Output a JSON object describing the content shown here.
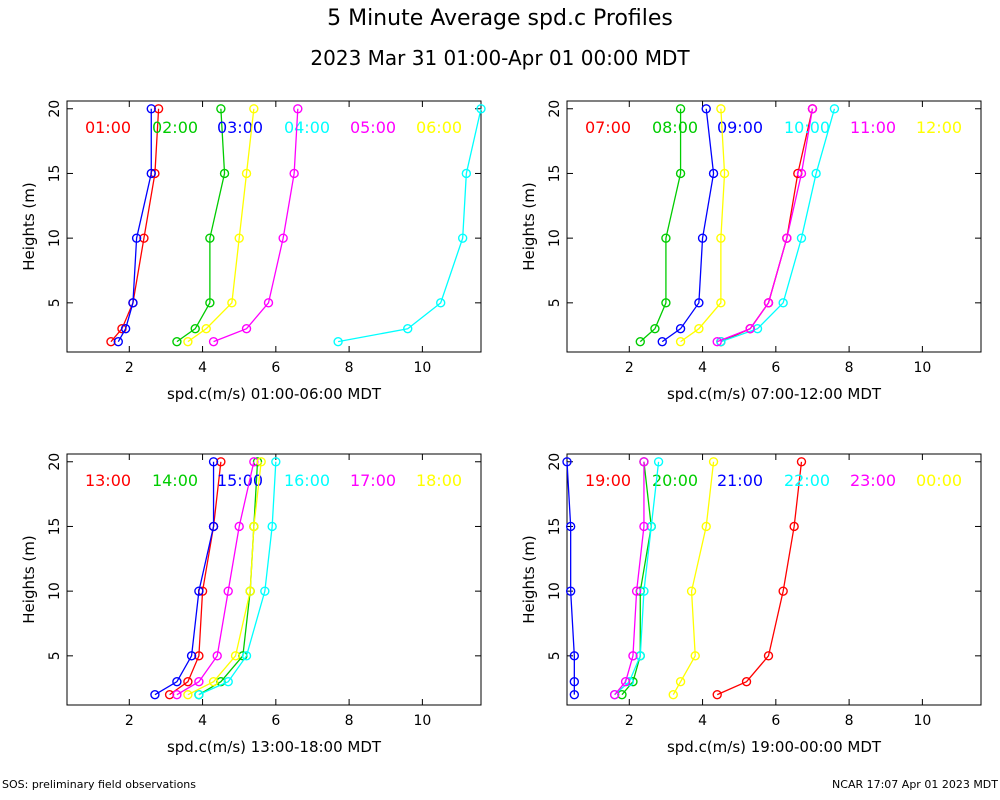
{
  "title": "5 Minute Average spd.c Profiles",
  "subtitle": "2023 Mar 31 01:00-Apr 01 00:00 MDT",
  "footer_left": "SOS: preliminary field observations",
  "footer_right": "NCAR 17:07 Apr 01 2023 MDT",
  "chart_data": [
    {
      "type": "line",
      "xlabel": "spd.c(m/s) 01:00-06:00 MDT",
      "ylabel": "Heights (m)",
      "xlim": [
        0.3,
        11.6
      ],
      "ylim": [
        1.2,
        20.6
      ],
      "xticks": [
        2,
        4,
        6,
        8,
        10
      ],
      "yticks": [
        5,
        10,
        15,
        20
      ],
      "heights": [
        2,
        3,
        5,
        10,
        15,
        20
      ],
      "series": [
        {
          "name": "01:00",
          "color": "#ff0000",
          "x": [
            1.5,
            1.8,
            2.1,
            2.4,
            2.7,
            2.8
          ]
        },
        {
          "name": "02:00",
          "color": "#00cc00",
          "x": [
            3.3,
            3.8,
            4.2,
            4.2,
            4.6,
            4.5
          ]
        },
        {
          "name": "03:00",
          "color": "#0000ff",
          "x": [
            1.7,
            1.9,
            2.1,
            2.2,
            2.6,
            2.6
          ]
        },
        {
          "name": "04:00",
          "color": "#00ffff",
          "x": [
            7.7,
            9.6,
            10.5,
            11.1,
            11.2,
            11.6
          ]
        },
        {
          "name": "05:00",
          "color": "#ff00ff",
          "x": [
            4.3,
            5.2,
            5.8,
            6.2,
            6.5,
            6.6
          ]
        },
        {
          "name": "06:00",
          "color": "#ffff00",
          "x": [
            3.6,
            4.1,
            4.8,
            5.0,
            5.2,
            5.4
          ]
        }
      ]
    },
    {
      "type": "line",
      "xlabel": "spd.c(m/s) 07:00-12:00 MDT",
      "ylabel": "Heights (m)",
      "xlim": [
        0.3,
        11.6
      ],
      "ylim": [
        1.2,
        20.6
      ],
      "xticks": [
        2,
        4,
        6,
        8,
        10
      ],
      "yticks": [
        5,
        10,
        15,
        20
      ],
      "heights": [
        2,
        3,
        5,
        10,
        15,
        20
      ],
      "series": [
        {
          "name": "07:00",
          "color": "#ff0000",
          "x": [
            4.5,
            5.3,
            5.8,
            6.3,
            6.6,
            7.0
          ]
        },
        {
          "name": "08:00",
          "color": "#00cc00",
          "x": [
            2.3,
            2.7,
            3.0,
            3.0,
            3.4,
            3.4
          ]
        },
        {
          "name": "09:00",
          "color": "#0000ff",
          "x": [
            2.9,
            3.4,
            3.9,
            4.0,
            4.3,
            4.1
          ]
        },
        {
          "name": "10:00",
          "color": "#00ffff",
          "x": [
            4.5,
            5.5,
            6.2,
            6.7,
            7.1,
            7.6
          ]
        },
        {
          "name": "11:00",
          "color": "#ff00ff",
          "x": [
            4.4,
            5.3,
            5.8,
            6.3,
            6.7,
            7.0
          ]
        },
        {
          "name": "12:00",
          "color": "#ffff00",
          "x": [
            3.4,
            3.9,
            4.5,
            4.5,
            4.6,
            4.5
          ]
        }
      ]
    },
    {
      "type": "line",
      "xlabel": "spd.c(m/s) 13:00-18:00 MDT",
      "ylabel": "Heights (m)",
      "xlim": [
        0.3,
        11.6
      ],
      "ylim": [
        1.2,
        20.6
      ],
      "xticks": [
        2,
        4,
        6,
        8,
        10
      ],
      "yticks": [
        5,
        10,
        15,
        20
      ],
      "heights": [
        2,
        3,
        5,
        10,
        15,
        20
      ],
      "series": [
        {
          "name": "13:00",
          "color": "#ff0000",
          "x": [
            3.1,
            3.6,
            3.9,
            4.0,
            4.3,
            4.5
          ]
        },
        {
          "name": "14:00",
          "color": "#00cc00",
          "x": [
            3.9,
            4.5,
            5.1,
            5.3,
            5.4,
            5.5
          ]
        },
        {
          "name": "15:00",
          "color": "#0000ff",
          "x": [
            2.7,
            3.3,
            3.7,
            3.9,
            4.3,
            4.3
          ]
        },
        {
          "name": "16:00",
          "color": "#00ffff",
          "x": [
            3.9,
            4.7,
            5.2,
            5.7,
            5.9,
            6.0
          ]
        },
        {
          "name": "17:00",
          "color": "#ff00ff",
          "x": [
            3.3,
            3.9,
            4.4,
            4.7,
            5.0,
            5.4
          ]
        },
        {
          "name": "18:00",
          "color": "#ffff00",
          "x": [
            3.6,
            4.3,
            4.9,
            5.3,
            5.4,
            5.6
          ]
        }
      ]
    },
    {
      "type": "line",
      "xlabel": "spd.c(m/s) 19:00-00:00 MDT",
      "ylabel": "Heights (m)",
      "xlim": [
        0.3,
        11.6
      ],
      "ylim": [
        1.2,
        20.6
      ],
      "xticks": [
        2,
        4,
        6,
        8,
        10
      ],
      "yticks": [
        5,
        10,
        15,
        20
      ],
      "heights": [
        2,
        3,
        5,
        10,
        15,
        20
      ],
      "series": [
        {
          "name": "19:00",
          "color": "#ff0000",
          "x": [
            4.4,
            5.2,
            5.8,
            6.2,
            6.5,
            6.7
          ]
        },
        {
          "name": "20:00",
          "color": "#00cc00",
          "x": [
            1.8,
            2.1,
            2.3,
            2.3,
            2.6,
            2.4
          ]
        },
        {
          "name": "21:00",
          "color": "#0000ff",
          "x": [
            0.5,
            0.5,
            0.5,
            0.4,
            0.4,
            0.3
          ]
        },
        {
          "name": "22:00",
          "color": "#00ffff",
          "x": [
            1.6,
            2.0,
            2.3,
            2.4,
            2.6,
            2.8
          ]
        },
        {
          "name": "23:00",
          "color": "#ff00ff",
          "x": [
            1.6,
            1.9,
            2.1,
            2.2,
            2.4,
            2.4
          ]
        },
        {
          "name": "00:00",
          "color": "#ffff00",
          "x": [
            3.2,
            3.4,
            3.8,
            3.7,
            4.1,
            4.3
          ]
        }
      ]
    }
  ]
}
